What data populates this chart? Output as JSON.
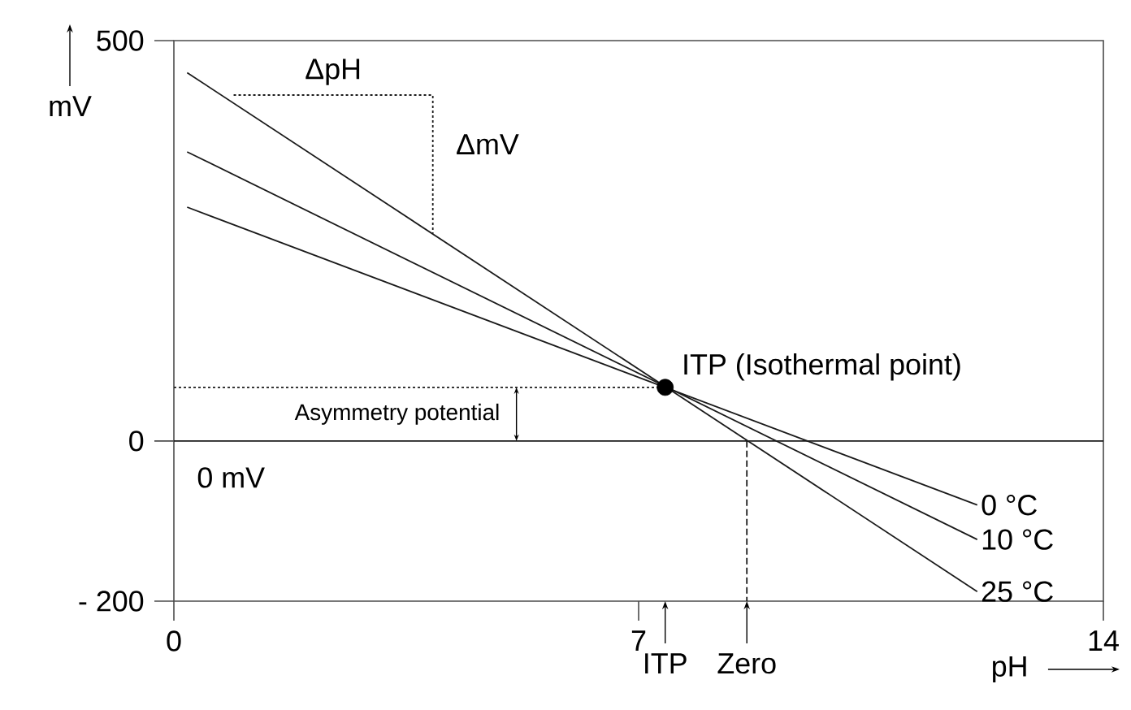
{
  "chart_data": {
    "type": "line",
    "xlabel": "pH",
    "ylabel": "mV",
    "xlim": [
      0,
      14
    ],
    "ylim": [
      -200,
      500
    ],
    "xticks": [
      0,
      7,
      14
    ],
    "yticks": [
      {
        "value": -200,
        "label": "- 200"
      },
      0,
      500
    ],
    "series": [
      {
        "name": "0 °C",
        "x": [
          0.2,
          12.1
        ],
        "values": [
          292,
          -80
        ],
        "color": "#1a1a1a"
      },
      {
        "name": "10 °C",
        "x": [
          0.2,
          12.1
        ],
        "values": [
          361,
          -123
        ],
        "color": "#1a1a1a"
      },
      {
        "name": "25 °C",
        "x": [
          0.2,
          12.1
        ],
        "values": [
          460,
          -188
        ],
        "color": "#1a1a1a"
      },
      {
        "type": "scatter",
        "x": [
          7.4
        ],
        "values": [
          67
        ],
        "color": "#000000"
      },
      {
        "x": [
          0.9,
          3.9,
          3.9
        ],
        "values": [
          432,
          432,
          259
        ],
        "color": "#1a1a1a",
        "line_style": "dotted"
      },
      {
        "x": [
          0,
          7.4
        ],
        "values": [
          67,
          67
        ],
        "color": "#1a1a1a",
        "line_style": "dotted"
      },
      {
        "x": [
          8.63,
          8.63
        ],
        "values": [
          0,
          -200
        ],
        "color": "#1a1a1a",
        "line_style": "dashed"
      }
    ],
    "ref_lines": [
      {
        "axis": "y",
        "value": 0,
        "label": "0 mV"
      }
    ],
    "annotations": [
      "ΔpH",
      "ΔmV",
      {
        "text": "ITP (Isothermal point)",
        "x": 7.4,
        "y": 67
      },
      {
        "text": "Asymmetry potential",
        "x": 5.16,
        "y": 67
      },
      "ITP",
      {
        "text": "Zero",
        "x": 8.63,
        "y": -200
      }
    ]
  }
}
